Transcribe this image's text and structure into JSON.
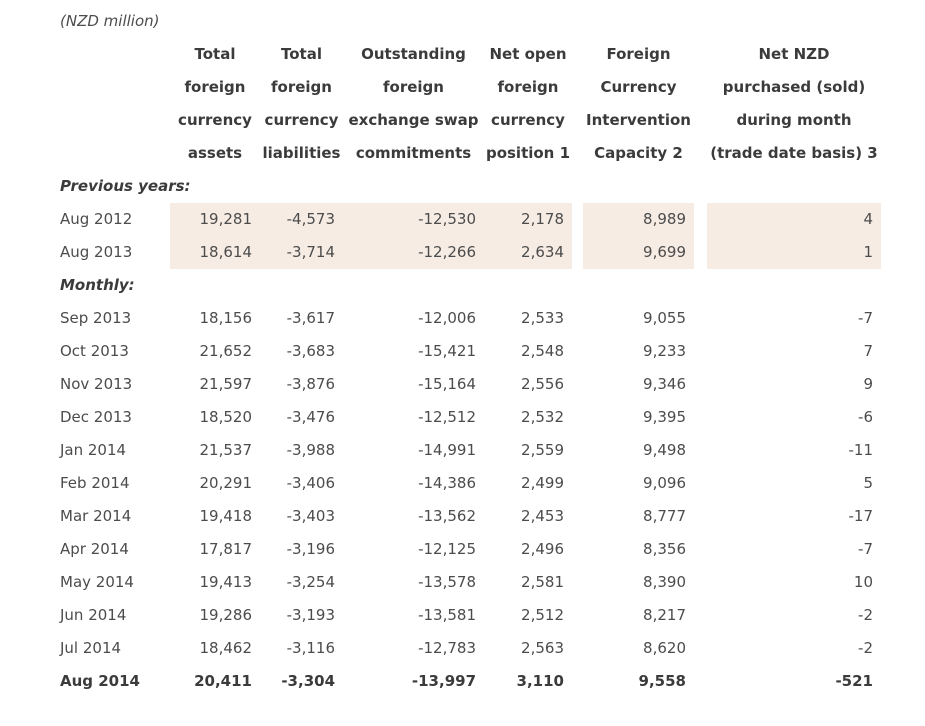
{
  "unit_label": "(NZD million)",
  "colors": {
    "highlight_bg": "#f6ece4",
    "body_text": "#4c4c4c",
    "heading_text": "#3b3b3b"
  },
  "chart_data": {
    "type": "table",
    "title": "(NZD million)",
    "columns": [
      "Total foreign currency assets",
      "Total foreign currency liabilities",
      "Outstanding foreign exchange swap commitments",
      "Net open foreign currency position 1",
      "Foreign Currency Intervention Capacity 2",
      "Net NZD purchased (sold) during month (trade date basis) 3"
    ],
    "column_header_lines": [
      "Total\nforeign\ncurrency\nassets",
      "Total\nforeign\ncurrency\nliabilities",
      "Outstanding\nforeign\nexchange swap\ncommitments",
      "Net open\nforeign\ncurrency\nposition 1",
      "Foreign\nCurrency\nIntervention\nCapacity 2",
      "Net NZD\npurchased (sold)\nduring month\n(trade date basis) 3"
    ],
    "sections": [
      {
        "label": "Previous years:",
        "rows": [
          {
            "label": "Aug 2012",
            "values": [
              "19,281",
              "-4,573",
              "-12,530",
              "2,178",
              "8,989",
              "4"
            ],
            "highlighted": true
          },
          {
            "label": "Aug 2013",
            "values": [
              "18,614",
              "-3,714",
              "-12,266",
              "2,634",
              "9,699",
              "1"
            ],
            "highlighted": true
          }
        ]
      },
      {
        "label": "Monthly:",
        "rows": [
          {
            "label": "Sep 2013",
            "values": [
              "18,156",
              "-3,617",
              "-12,006",
              "2,533",
              "9,055",
              "-7"
            ]
          },
          {
            "label": "Oct 2013",
            "values": [
              "21,652",
              "-3,683",
              "-15,421",
              "2,548",
              "9,233",
              "7"
            ]
          },
          {
            "label": "Nov 2013",
            "values": [
              "21,597",
              "-3,876",
              "-15,164",
              "2,556",
              "9,346",
              "9"
            ]
          },
          {
            "label": "Dec 2013",
            "values": [
              "18,520",
              "-3,476",
              "-12,512",
              "2,532",
              "9,395",
              "-6"
            ]
          },
          {
            "label": "Jan 2014",
            "values": [
              "21,537",
              "-3,988",
              "-14,991",
              "2,559",
              "9,498",
              "-11"
            ]
          },
          {
            "label": "Feb 2014",
            "values": [
              "20,291",
              "-3,406",
              "-14,386",
              "2,499",
              "9,096",
              "5"
            ]
          },
          {
            "label": "Mar 2014",
            "values": [
              "19,418",
              "-3,403",
              "-13,562",
              "2,453",
              "8,777",
              "-17"
            ]
          },
          {
            "label": "Apr 2014",
            "values": [
              "17,817",
              "-3,196",
              "-12,125",
              "2,496",
              "8,356",
              "-7"
            ]
          },
          {
            "label": "May 2014",
            "values": [
              "19,413",
              "-3,254",
              "-13,578",
              "2,581",
              "8,390",
              "10"
            ]
          },
          {
            "label": "Jun 2014",
            "values": [
              "19,286",
              "-3,193",
              "-13,581",
              "2,512",
              "8,217",
              "-2"
            ]
          },
          {
            "label": "Jul 2014",
            "values": [
              "18,462",
              "-3,116",
              "-12,783",
              "2,563",
              "8,620",
              "-2"
            ]
          },
          {
            "label": "Aug 2014",
            "values": [
              "20,411",
              "-3,304",
              "-13,997",
              "3,110",
              "9,558",
              "-521"
            ],
            "bold": true
          }
        ]
      }
    ]
  }
}
